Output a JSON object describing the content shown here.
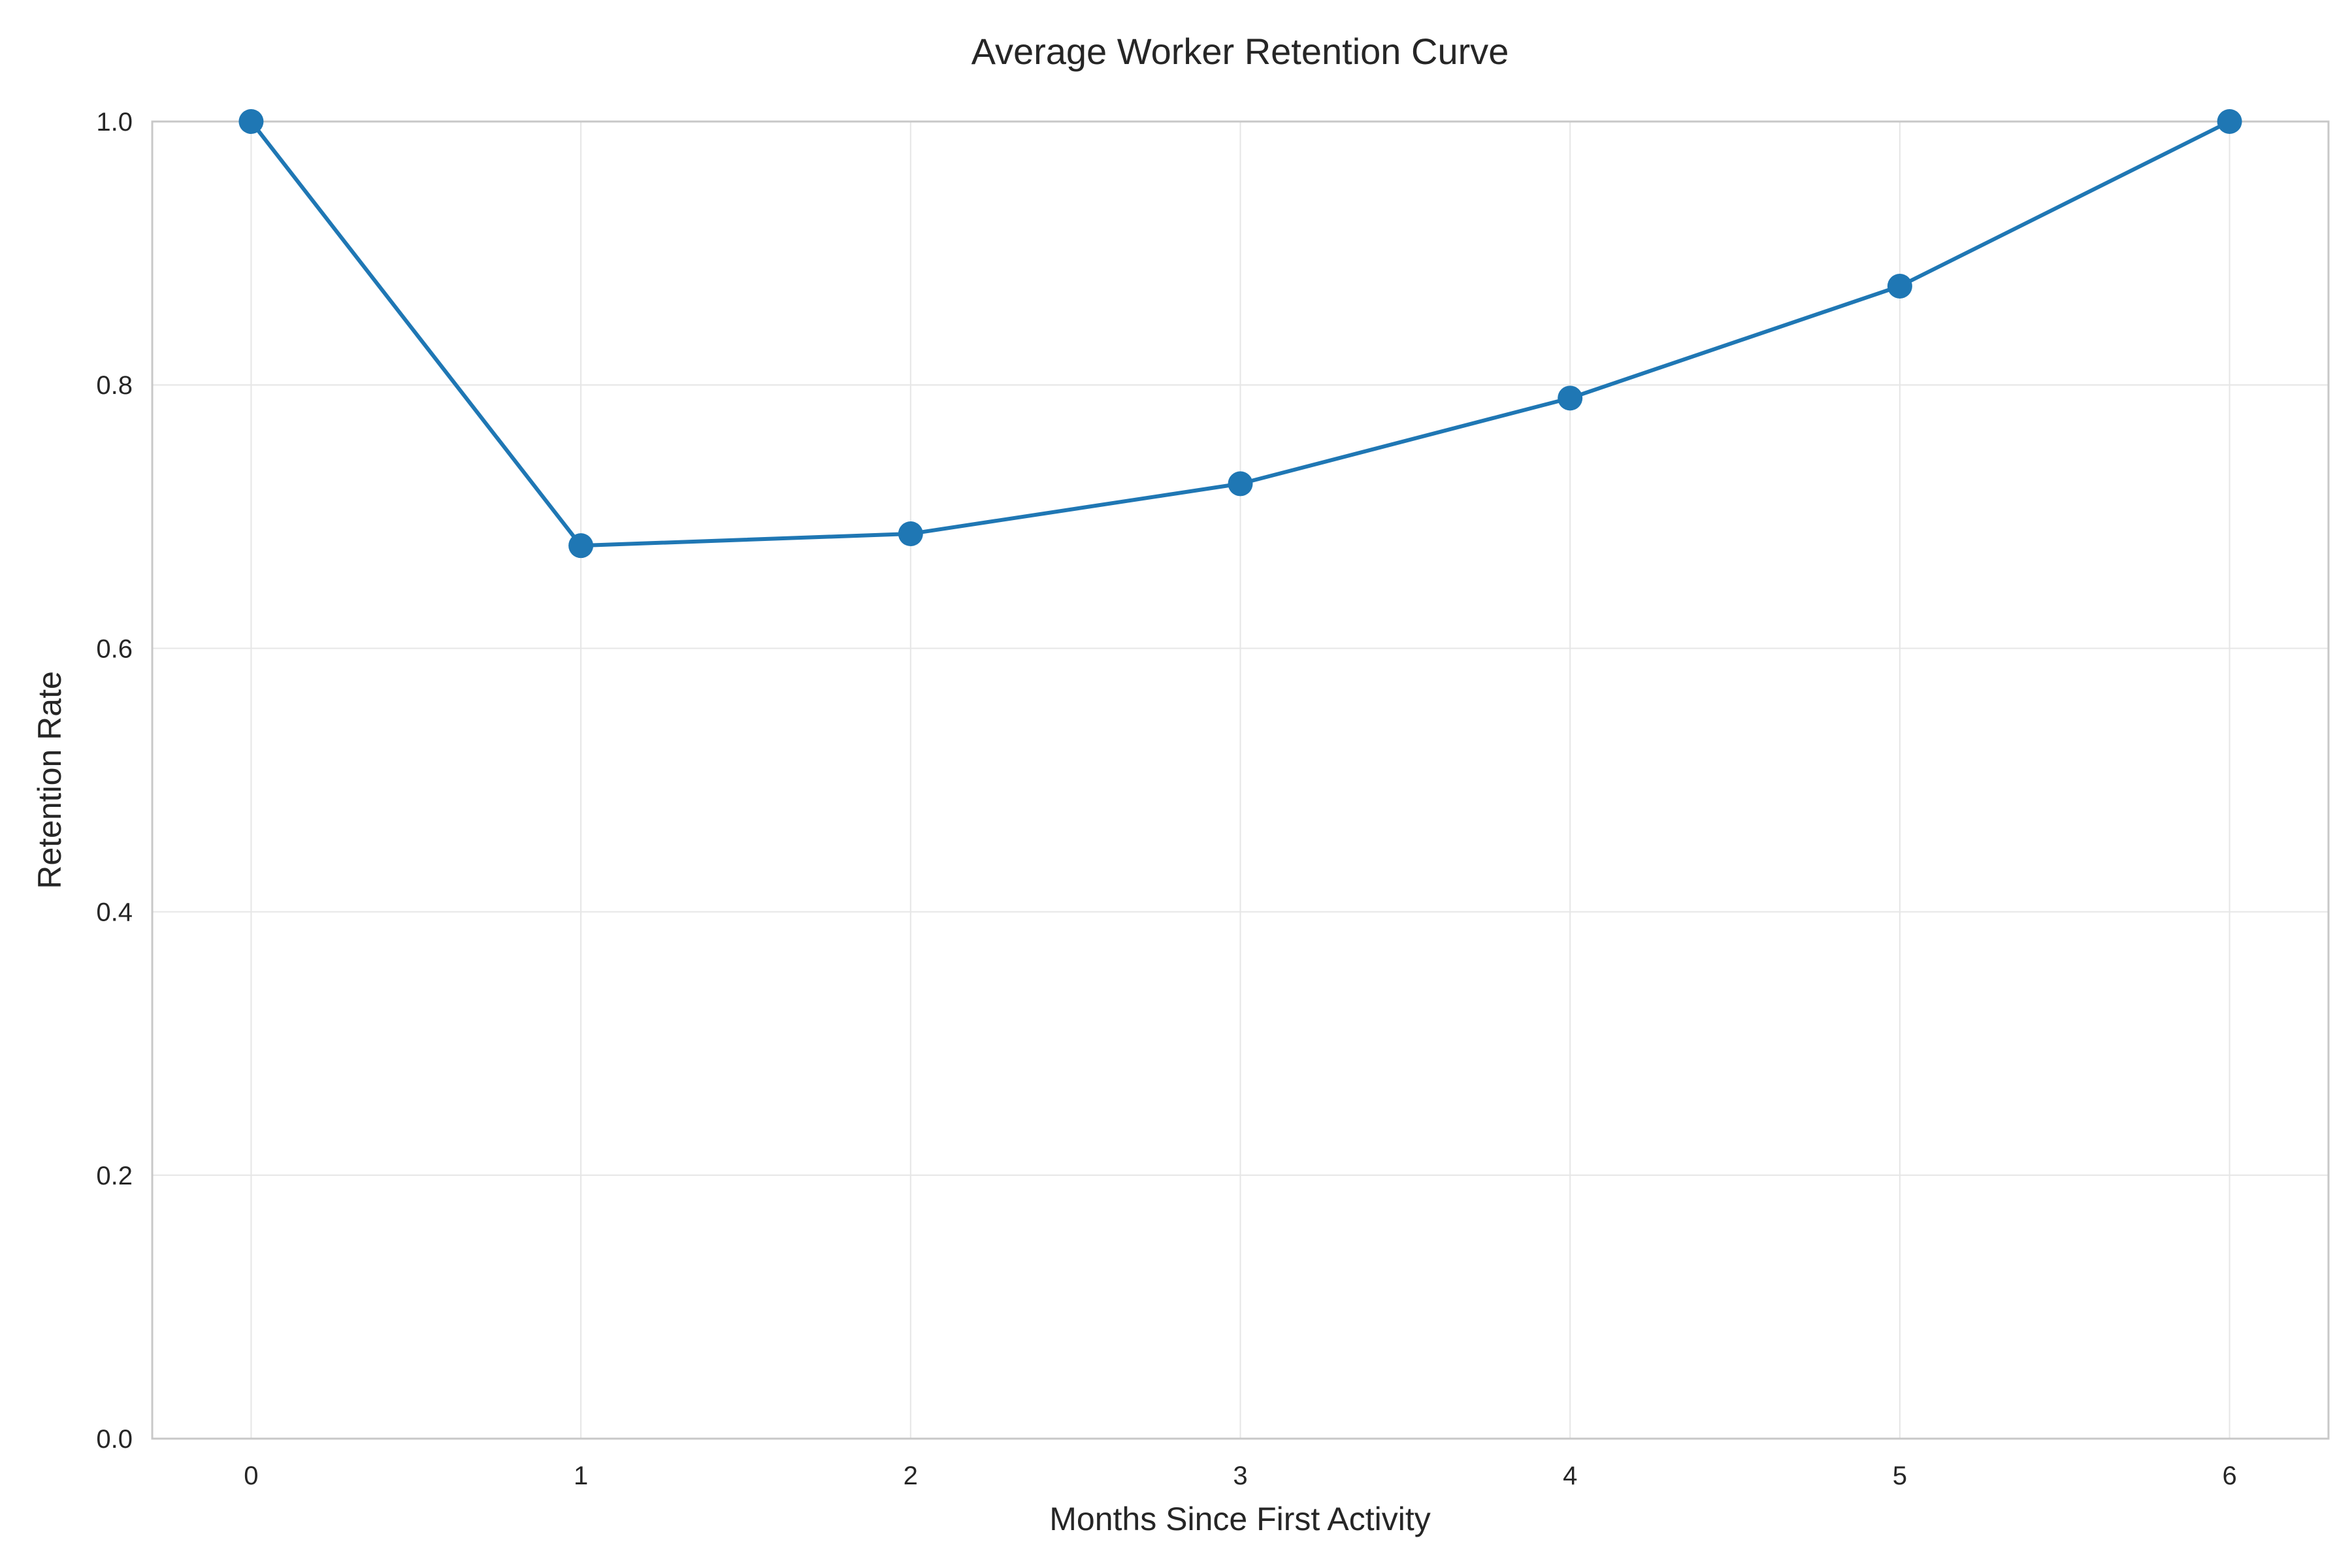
{
  "chart_data": {
    "type": "line",
    "title": "Average Worker Retention Curve",
    "xlabel": "Months Since First Activity",
    "ylabel": "Retention Rate",
    "x": [
      0,
      1,
      2,
      3,
      4,
      5,
      6
    ],
    "series": [
      {
        "values": [
          1.0,
          0.678,
          0.687,
          0.725,
          0.79,
          0.875,
          1.0
        ],
        "color": "#1f77b4",
        "marker": "circle"
      }
    ],
    "xlim": [
      -0.3,
      6.3
    ],
    "ylim": [
      0.0,
      1.0
    ],
    "x_ticks": [
      "0",
      "1",
      "2",
      "3",
      "4",
      "5",
      "6"
    ],
    "y_ticks": [
      "0.0",
      "0.2",
      "0.4",
      "0.6",
      "0.8",
      "1.0"
    ],
    "grid": true,
    "legend": "none"
  }
}
